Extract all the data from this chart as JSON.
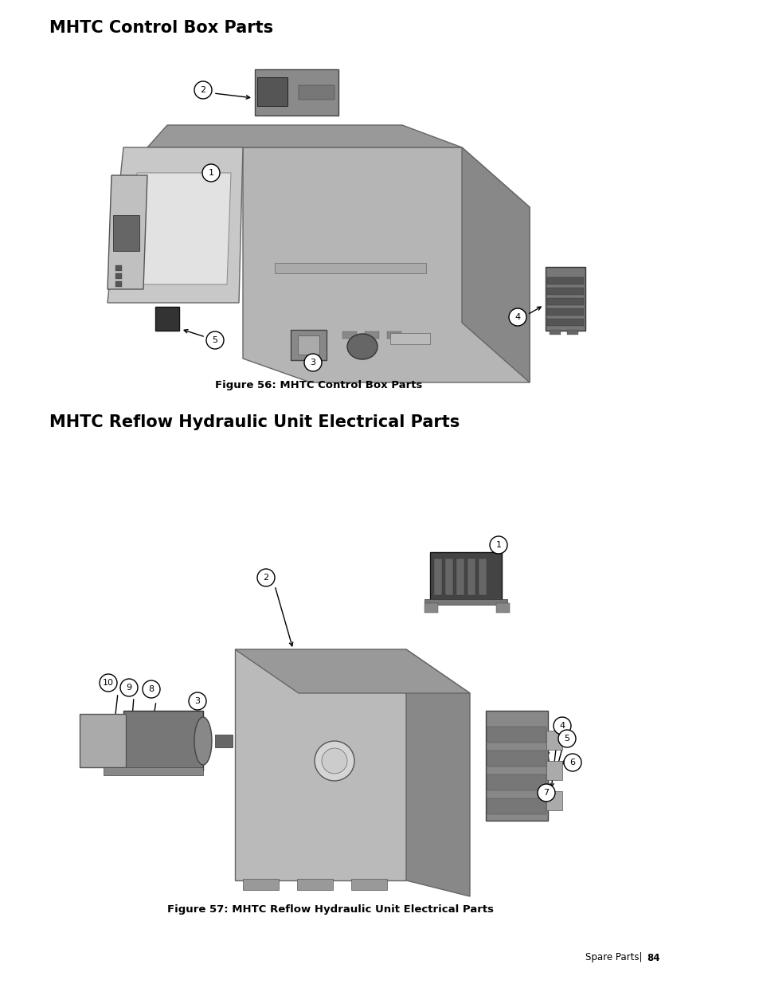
{
  "title1": "MHTC Control Box Parts",
  "title2": "MHTC Reflow Hydraulic Unit Electrical Parts",
  "fig1_caption": "Figure 56: MHTC Control Box Parts",
  "fig2_caption": "Figure 57: MHTC Reflow Hydraulic Unit Electrical Parts",
  "footer_label": "Spare Parts| ",
  "footer_page": "84",
  "bg_color": "#ffffff",
  "title_fontsize": 15,
  "caption_fontsize": 9.5,
  "footer_fontsize": 8.5,
  "label_fontsize": 8
}
